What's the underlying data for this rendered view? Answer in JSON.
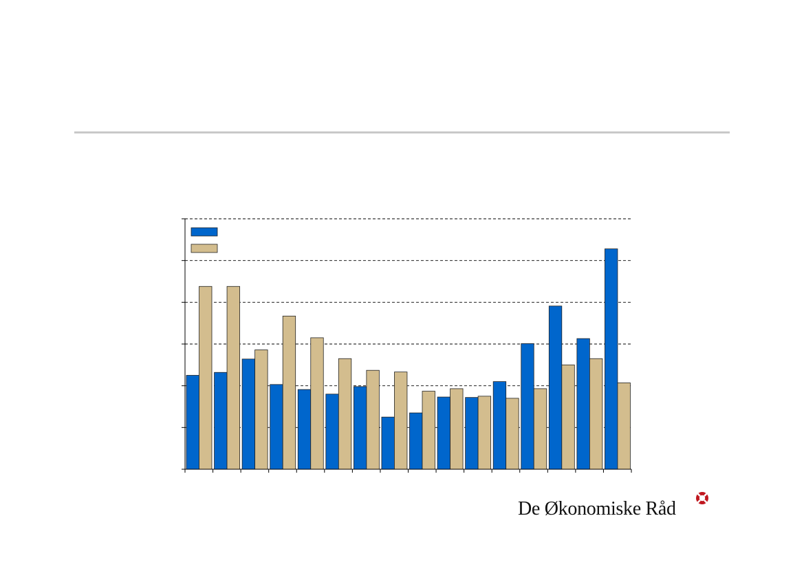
{
  "brand": {
    "name": "De Økonomiske Råd",
    "accent_color": "#c0171f"
  },
  "chart_data": {
    "type": "bar",
    "categories": [
      "",
      "",
      "",
      "",
      "",
      "",
      "",
      "",
      "",
      "",
      "",
      "",
      "",
      "",
      "",
      ""
    ],
    "series": [
      {
        "color": "#0066cc",
        "values": [
          2.25,
          2.32,
          2.64,
          2.03,
          1.91,
          1.8,
          1.98,
          1.25,
          1.35,
          1.73,
          1.72,
          2.1,
          3.01,
          3.91,
          3.13,
          5.28
        ]
      },
      {
        "color": "#d3bd8e",
        "values": [
          4.38,
          4.38,
          2.86,
          3.67,
          3.15,
          2.65,
          2.37,
          2.33,
          1.87,
          1.93,
          1.75,
          1.7,
          1.93,
          2.5,
          2.65,
          2.07
        ]
      }
    ],
    "legend": "top-left",
    "grid": true,
    "ylim": [
      0,
      6
    ],
    "yticks": [
      0,
      1,
      2,
      3,
      4,
      5,
      6
    ],
    "tick_labels_visible": false
  }
}
